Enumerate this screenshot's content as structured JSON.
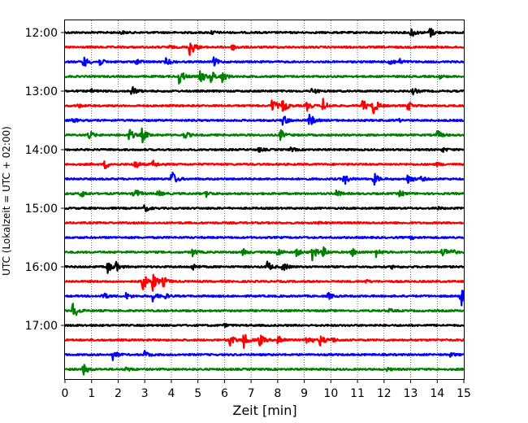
{
  "chart_data": {
    "type": "line",
    "xlabel": "Zeit  [min]",
    "ylabel": "UTC (Lokalzeit = UTC + 02:00)",
    "xlim": [
      0,
      15
    ],
    "x_ticks": [
      "0",
      "1",
      "2",
      "3",
      "4",
      "5",
      "6",
      "7",
      "8",
      "9",
      "10",
      "11",
      "12",
      "13",
      "14",
      "15"
    ],
    "y_tick_labels": [
      {
        "label": "12:00",
        "trace_index": 0
      },
      {
        "label": "13:00",
        "trace_index": 4
      },
      {
        "label": "14:00",
        "trace_index": 8
      },
      {
        "label": "15:00",
        "trace_index": 12
      },
      {
        "label": "16:00",
        "trace_index": 16
      },
      {
        "label": "17:00",
        "trace_index": 20
      }
    ],
    "grid": {
      "vertical": true,
      "horizontal": false
    },
    "trace_interval_min": 15,
    "series_colors": [
      "#000000",
      "#ff0000",
      "#0000ff",
      "#008000"
    ],
    "traces": [
      {
        "start": "12:00",
        "color": "#000000",
        "events": [
          [
            13.0,
            0.55
          ],
          [
            13.7,
            0.6
          ],
          [
            5.5,
            0.2
          ],
          [
            2.1,
            0.15
          ]
        ]
      },
      {
        "start": "12:15",
        "color": "#ff0000",
        "events": [
          [
            4.7,
            1.0
          ],
          [
            6.3,
            0.3
          ],
          [
            3.9,
            0.15
          ]
        ]
      },
      {
        "start": "12:30",
        "color": "#0000ff",
        "events": [
          [
            0.7,
            0.55
          ],
          [
            1.3,
            0.35
          ],
          [
            2.7,
            0.3
          ],
          [
            3.8,
            0.35
          ],
          [
            5.6,
            0.4
          ],
          [
            12.2,
            0.45
          ],
          [
            12.6,
            0.2
          ]
        ]
      },
      {
        "start": "12:45",
        "color": "#008000",
        "events": [
          [
            4.3,
            0.85
          ],
          [
            5.1,
            0.7
          ],
          [
            5.5,
            0.6
          ],
          [
            5.9,
            0.55
          ],
          [
            14.1,
            0.15
          ]
        ]
      },
      {
        "start": "13:00",
        "color": "#000000",
        "events": [
          [
            2.5,
            0.55
          ],
          [
            9.3,
            0.35
          ],
          [
            13.1,
            0.3
          ],
          [
            1.0,
            0.15
          ]
        ]
      },
      {
        "start": "13:15",
        "color": "#ff0000",
        "events": [
          [
            7.8,
            0.8
          ],
          [
            8.2,
            0.7
          ],
          [
            9.1,
            0.45
          ],
          [
            9.7,
            0.65
          ],
          [
            11.2,
            0.6
          ],
          [
            11.6,
            0.9
          ],
          [
            12.9,
            0.45
          ],
          [
            0.5,
            0.15
          ]
        ]
      },
      {
        "start": "13:30",
        "color": "#0000ff",
        "events": [
          [
            8.2,
            0.55
          ],
          [
            9.2,
            0.65
          ],
          [
            0.3,
            0.2
          ],
          [
            12.5,
            0.15
          ]
        ]
      },
      {
        "start": "13:45",
        "color": "#008000",
        "events": [
          [
            0.9,
            0.45
          ],
          [
            2.4,
            0.65
          ],
          [
            2.9,
            0.7
          ],
          [
            4.5,
            0.35
          ],
          [
            8.1,
            0.5
          ],
          [
            14.0,
            0.45
          ]
        ]
      },
      {
        "start": "14:00",
        "color": "#000000",
        "events": [
          [
            7.3,
            0.2
          ],
          [
            8.5,
            0.2
          ],
          [
            14.2,
            0.2
          ]
        ]
      },
      {
        "start": "14:15",
        "color": "#ff0000",
        "events": [
          [
            1.5,
            0.45
          ],
          [
            2.6,
            0.55
          ],
          [
            3.3,
            0.35
          ],
          [
            14.0,
            0.15
          ]
        ]
      },
      {
        "start": "14:30",
        "color": "#0000ff",
        "events": [
          [
            4.0,
            0.9
          ],
          [
            10.5,
            0.55
          ],
          [
            11.6,
            0.65
          ],
          [
            12.9,
            0.55
          ],
          [
            13.4,
            0.2
          ]
        ]
      },
      {
        "start": "14:45",
        "color": "#008000",
        "events": [
          [
            0.6,
            0.4
          ],
          [
            2.6,
            0.65
          ],
          [
            3.5,
            0.3
          ],
          [
            5.3,
            0.3
          ],
          [
            10.2,
            0.35
          ],
          [
            12.6,
            0.3
          ]
        ]
      },
      {
        "start": "15:00",
        "color": "#000000",
        "events": [
          [
            3.0,
            0.35
          ],
          [
            14.0,
            0.12
          ]
        ]
      },
      {
        "start": "15:15",
        "color": "#ff0000",
        "events": [
          [
            9.5,
            0.12
          ]
        ]
      },
      {
        "start": "15:30",
        "color": "#0000ff",
        "events": [
          [
            13.0,
            0.12
          ]
        ]
      },
      {
        "start": "15:45",
        "color": "#008000",
        "events": [
          [
            4.8,
            0.35
          ],
          [
            6.7,
            0.3
          ],
          [
            8.0,
            0.4
          ],
          [
            8.7,
            0.4
          ],
          [
            9.3,
            0.85
          ],
          [
            9.7,
            0.45
          ],
          [
            10.8,
            0.4
          ],
          [
            11.7,
            0.4
          ],
          [
            14.2,
            0.55
          ],
          [
            14.5,
            0.3
          ]
        ]
      },
      {
        "start": "16:00",
        "color": "#000000",
        "events": [
          [
            1.6,
            0.6
          ],
          [
            1.9,
            0.45
          ],
          [
            4.8,
            0.35
          ],
          [
            7.6,
            0.55
          ],
          [
            8.2,
            0.45
          ],
          [
            12.3,
            0.15
          ]
        ]
      },
      {
        "start": "16:15",
        "color": "#ff0000",
        "events": [
          [
            2.9,
            1.1
          ],
          [
            3.3,
            0.9
          ],
          [
            3.7,
            0.45
          ],
          [
            11.3,
            0.15
          ]
        ]
      },
      {
        "start": "16:30",
        "color": "#0000ff",
        "events": [
          [
            1.4,
            0.4
          ],
          [
            2.3,
            0.3
          ],
          [
            3.3,
            0.45
          ],
          [
            3.7,
            0.35
          ],
          [
            9.9,
            0.3
          ],
          [
            14.9,
            1.2
          ]
        ]
      },
      {
        "start": "16:45",
        "color": "#008000",
        "events": [
          [
            0.3,
            0.9
          ],
          [
            12.2,
            0.15
          ]
        ]
      },
      {
        "start": "17:00",
        "color": "#000000",
        "events": [
          [
            6.0,
            0.12
          ]
        ]
      },
      {
        "start": "17:15",
        "color": "#ff0000",
        "events": [
          [
            6.2,
            0.6
          ],
          [
            6.7,
            0.85
          ],
          [
            7.3,
            0.7
          ],
          [
            8.0,
            0.7
          ],
          [
            9.1,
            0.6
          ],
          [
            9.6,
            0.55
          ],
          [
            10.0,
            0.3
          ]
        ]
      },
      {
        "start": "17:30",
        "color": "#0000ff",
        "events": [
          [
            1.8,
            0.5
          ],
          [
            3.0,
            0.35
          ],
          [
            14.5,
            0.2
          ]
        ]
      },
      {
        "start": "17:45",
        "color": "#008000",
        "events": [
          [
            0.7,
            0.55
          ],
          [
            2.3,
            0.25
          ],
          [
            12.1,
            0.15
          ]
        ]
      }
    ]
  }
}
